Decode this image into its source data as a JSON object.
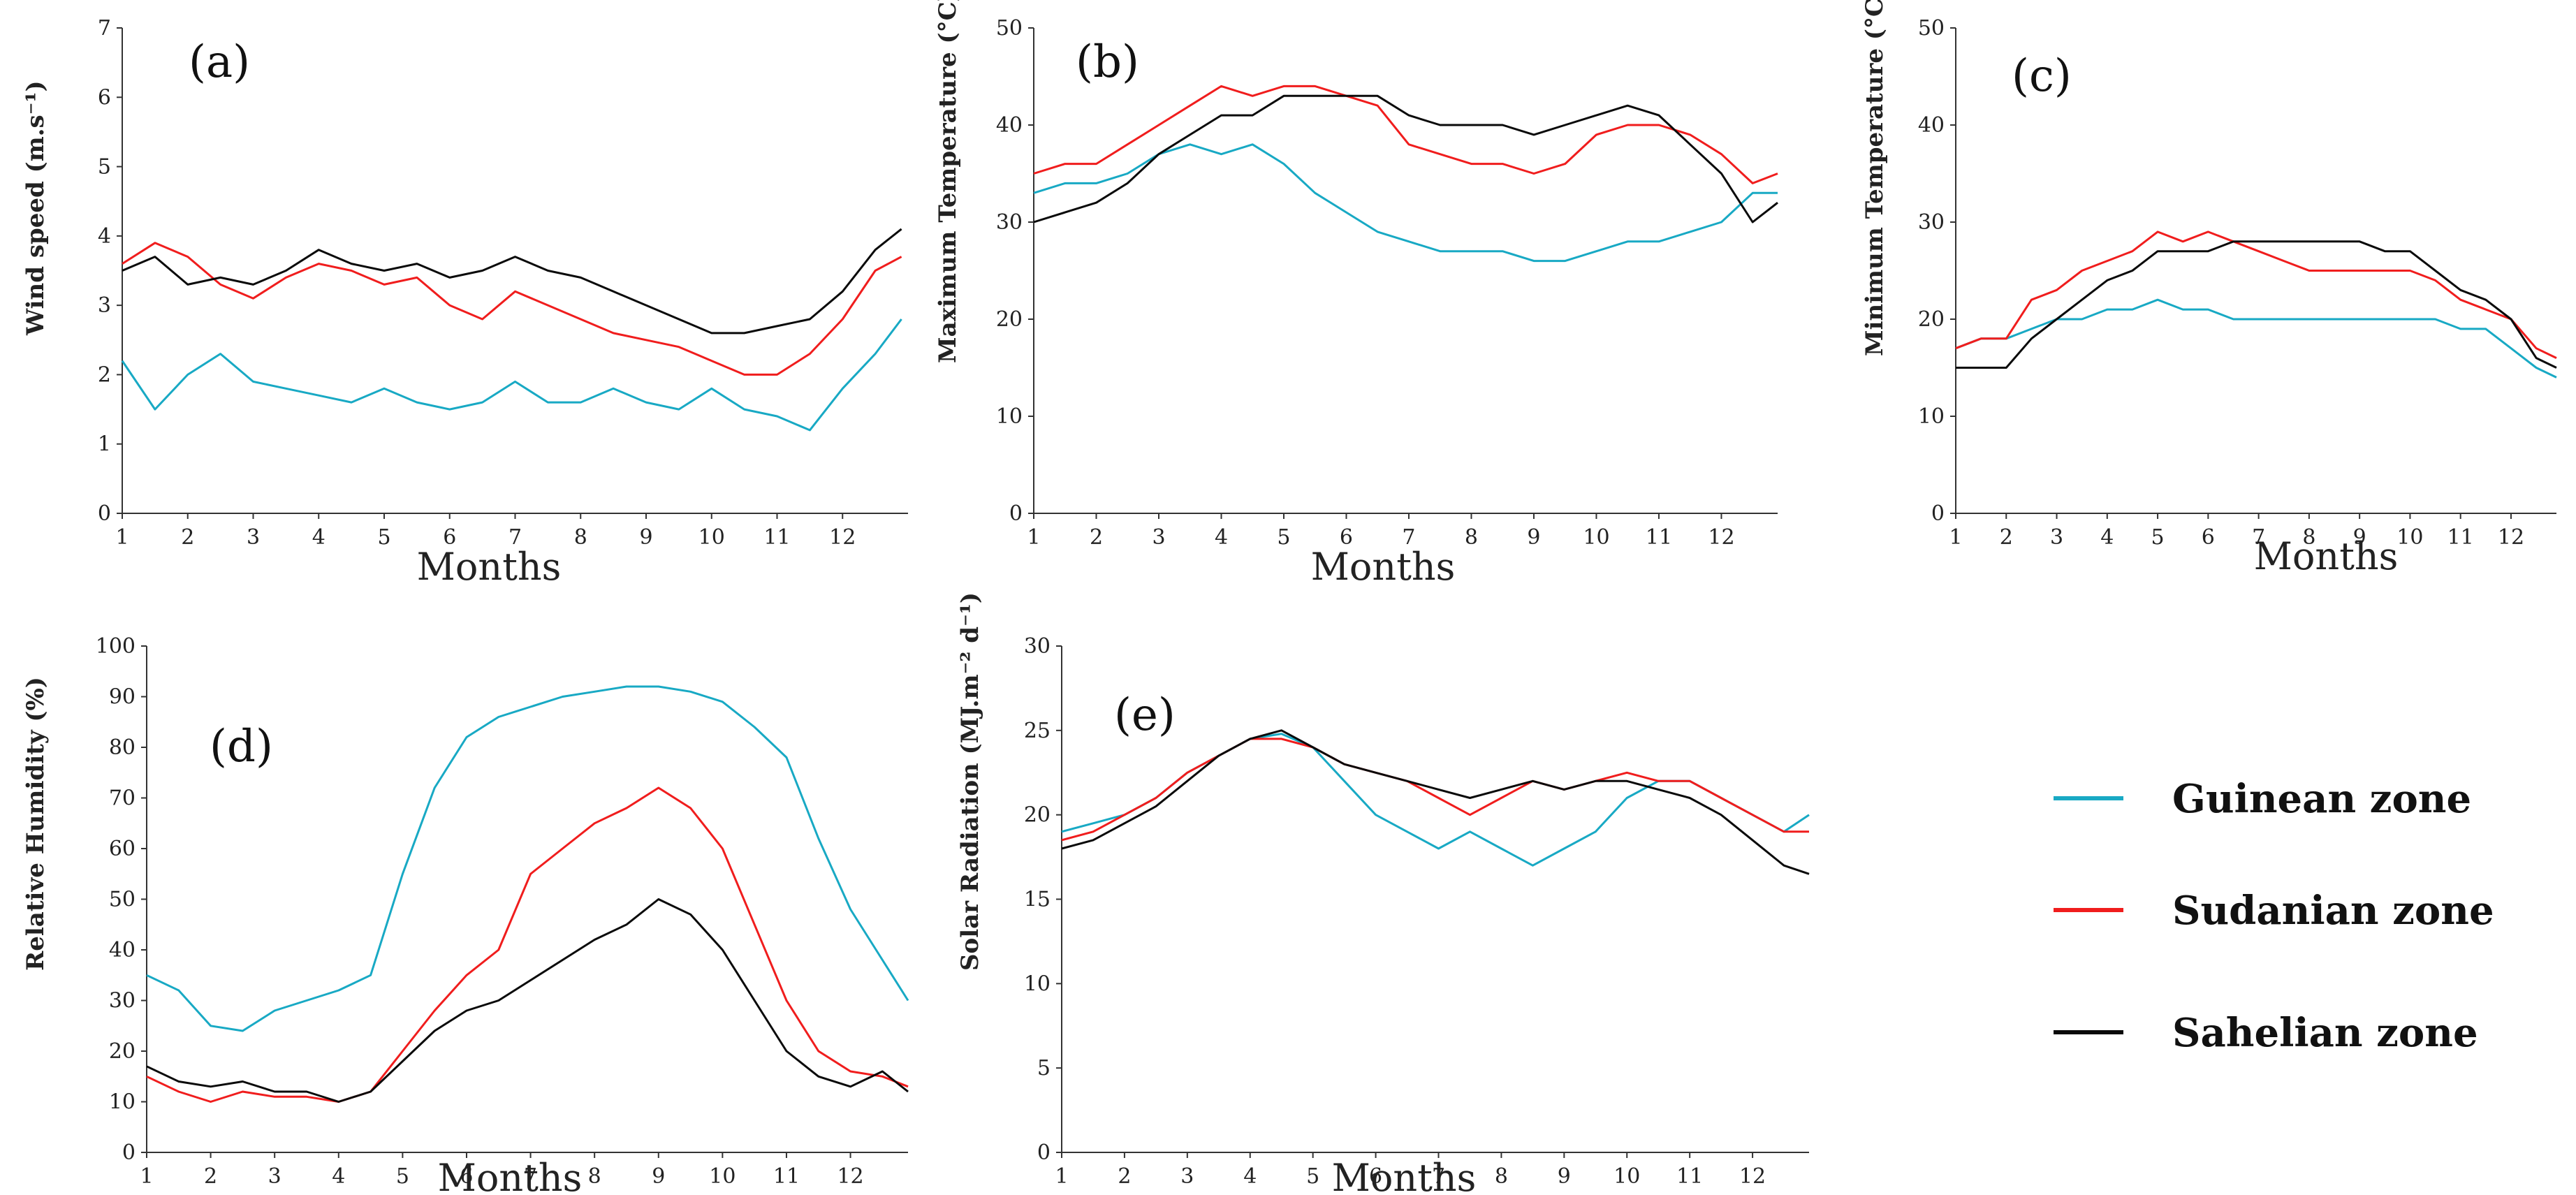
{
  "colors": {
    "guinean": "#18a9c4",
    "sudanian": "#f01d1d",
    "sahelian": "#0a0a0a"
  },
  "legend": [
    {
      "name": "Guinean zone",
      "color": "#18a9c4"
    },
    {
      "name": "Sudanian zone",
      "color": "#f01d1d"
    },
    {
      "name": "Sahelian zone",
      "color": "#0a0a0a"
    }
  ],
  "chart_data": [
    {
      "id": "a",
      "type": "line",
      "panel_label": "(a)",
      "xlabel": "Months",
      "ylabel": "Wind speed (m.s⁻¹)",
      "xlim": [
        1,
        13
      ],
      "ylim": [
        0,
        7
      ],
      "x_ticks": [
        1,
        2,
        3,
        4,
        5,
        6,
        7,
        8,
        9,
        10,
        11,
        12
      ],
      "y_ticks": [
        0,
        1,
        2,
        3,
        4,
        5,
        6,
        7
      ],
      "series": [
        {
          "name": "Guinean zone",
          "color": "#18a9c4",
          "x": [
            1,
            1.5,
            2,
            2.5,
            3,
            3.5,
            4,
            4.5,
            5,
            5.5,
            6,
            6.5,
            7,
            7.5,
            8,
            8.5,
            9,
            9.5,
            10,
            10.5,
            11,
            11.5,
            12,
            12.5,
            12.9
          ],
          "y": [
            2.2,
            1.5,
            2.0,
            2.3,
            1.9,
            1.8,
            1.7,
            1.6,
            1.8,
            1.6,
            1.5,
            1.6,
            1.9,
            1.6,
            1.6,
            1.8,
            1.6,
            1.5,
            1.8,
            1.5,
            1.4,
            1.2,
            1.8,
            2.3,
            2.8
          ]
        },
        {
          "name": "Sudanian zone",
          "color": "#f01d1d",
          "x": [
            1,
            1.5,
            2,
            2.5,
            3,
            3.5,
            4,
            4.5,
            5,
            5.5,
            6,
            6.5,
            7,
            7.5,
            8,
            8.5,
            9,
            9.5,
            10,
            10.5,
            11,
            11.5,
            12,
            12.5,
            12.9
          ],
          "y": [
            3.6,
            3.9,
            3.7,
            3.3,
            3.1,
            3.4,
            3.6,
            3.5,
            3.3,
            3.4,
            3.0,
            2.8,
            3.2,
            3.0,
            2.8,
            2.6,
            2.5,
            2.4,
            2.2,
            2.0,
            2.0,
            2.3,
            2.8,
            3.5,
            3.7
          ]
        },
        {
          "name": "Sahelian zone",
          "color": "#0a0a0a",
          "x": [
            1,
            1.5,
            2,
            2.5,
            3,
            3.5,
            4,
            4.5,
            5,
            5.5,
            6,
            6.5,
            7,
            7.5,
            8,
            8.5,
            9,
            9.5,
            10,
            10.5,
            11,
            11.5,
            12,
            12.5,
            12.9
          ],
          "y": [
            3.5,
            3.7,
            3.3,
            3.4,
            3.3,
            3.5,
            3.8,
            3.6,
            3.5,
            3.6,
            3.4,
            3.5,
            3.7,
            3.5,
            3.4,
            3.2,
            3.0,
            2.8,
            2.6,
            2.6,
            2.7,
            2.8,
            3.2,
            3.8,
            4.1
          ]
        }
      ]
    },
    {
      "id": "b",
      "type": "line",
      "panel_label": "(b)",
      "xlabel": "Months",
      "ylabel": "Maximum Temperature (°C)",
      "xlim": [
        1,
        12.9
      ],
      "ylim": [
        0,
        50
      ],
      "x_ticks": [
        1,
        2,
        3,
        4,
        5,
        6,
        7,
        8,
        9,
        10,
        11,
        12
      ],
      "y_ticks": [
        0,
        10,
        20,
        30,
        40,
        50
      ],
      "series": [
        {
          "name": "Guinean zone",
          "color": "#18a9c4",
          "x": [
            1,
            1.5,
            2,
            2.5,
            3,
            3.5,
            4,
            4.5,
            5,
            5.5,
            6,
            6.5,
            7,
            7.5,
            8,
            8.5,
            9,
            9.5,
            10,
            10.5,
            11,
            11.5,
            12,
            12.5,
            12.9
          ],
          "y": [
            33,
            34,
            34,
            35,
            37,
            38,
            37,
            38,
            36,
            33,
            31,
            29,
            28,
            27,
            27,
            27,
            26,
            26,
            27,
            28,
            28,
            29,
            30,
            33,
            33
          ]
        },
        {
          "name": "Sudanian zone",
          "color": "#f01d1d",
          "x": [
            1,
            1.5,
            2,
            2.5,
            3,
            3.5,
            4,
            4.5,
            5,
            5.5,
            6,
            6.5,
            7,
            7.5,
            8,
            8.5,
            9,
            9.5,
            10,
            10.5,
            11,
            11.5,
            12,
            12.5,
            12.9
          ],
          "y": [
            35,
            36,
            36,
            38,
            40,
            42,
            44,
            43,
            44,
            44,
            43,
            42,
            38,
            37,
            36,
            36,
            35,
            36,
            39,
            40,
            40,
            39,
            37,
            34,
            35
          ]
        },
        {
          "name": "Sahelian zone",
          "color": "#0a0a0a",
          "x": [
            1,
            1.5,
            2,
            2.5,
            3,
            3.5,
            4,
            4.5,
            5,
            5.5,
            6,
            6.5,
            7,
            7.5,
            8,
            8.5,
            9,
            9.5,
            10,
            10.5,
            11,
            11.5,
            12,
            12.5,
            12.9
          ],
          "y": [
            30,
            31,
            32,
            34,
            37,
            39,
            41,
            41,
            43,
            43,
            43,
            43,
            41,
            40,
            40,
            40,
            39,
            40,
            41,
            42,
            41,
            38,
            35,
            30,
            32
          ]
        }
      ]
    },
    {
      "id": "c",
      "type": "line",
      "panel_label": "(c)",
      "xlabel": "Months",
      "ylabel": "Minimum Temperature (°C)",
      "xlim": [
        1,
        12.9
      ],
      "ylim": [
        0,
        50
      ],
      "x_ticks": [
        1,
        2,
        3,
        4,
        5,
        6,
        7,
        8,
        9,
        10,
        11,
        12
      ],
      "y_ticks": [
        0,
        10,
        20,
        30,
        40,
        50
      ],
      "series": [
        {
          "name": "Guinean zone",
          "color": "#18a9c4",
          "x": [
            1,
            1.5,
            2,
            2.5,
            3,
            3.5,
            4,
            4.5,
            5,
            5.5,
            6,
            6.5,
            7,
            7.5,
            8,
            8.5,
            9,
            9.5,
            10,
            10.5,
            11,
            11.5,
            12,
            12.5,
            12.9
          ],
          "y": [
            17,
            18,
            18,
            19,
            20,
            20,
            21,
            21,
            22,
            21,
            21,
            20,
            20,
            20,
            20,
            20,
            20,
            20,
            20,
            20,
            19,
            19,
            17,
            15,
            14
          ]
        },
        {
          "name": "Sudanian zone",
          "color": "#f01d1d",
          "x": [
            1,
            1.5,
            2,
            2.5,
            3,
            3.5,
            4,
            4.5,
            5,
            5.5,
            6,
            6.5,
            7,
            7.5,
            8,
            8.5,
            9,
            9.5,
            10,
            10.5,
            11,
            11.5,
            12,
            12.5,
            12.9
          ],
          "y": [
            17,
            18,
            18,
            22,
            23,
            25,
            26,
            27,
            29,
            28,
            29,
            28,
            27,
            26,
            25,
            25,
            25,
            25,
            25,
            24,
            22,
            21,
            20,
            17,
            16
          ]
        },
        {
          "name": "Sahelian zone",
          "color": "#0a0a0a",
          "x": [
            1,
            1.5,
            2,
            2.5,
            3,
            3.5,
            4,
            4.5,
            5,
            5.5,
            6,
            6.5,
            7,
            7.5,
            8,
            8.5,
            9,
            9.5,
            10,
            10.5,
            11,
            11.5,
            12,
            12.5,
            12.9
          ],
          "y": [
            15,
            15,
            15,
            18,
            20,
            22,
            24,
            25,
            27,
            27,
            27,
            28,
            28,
            28,
            28,
            28,
            28,
            27,
            27,
            25,
            23,
            22,
            20,
            16,
            15
          ]
        }
      ]
    },
    {
      "id": "d",
      "type": "line",
      "panel_label": "(d)",
      "xlabel": "Months",
      "ylabel": "Relative Humidity (%)",
      "xlim": [
        1,
        12.9
      ],
      "ylim": [
        0,
        100
      ],
      "x_ticks": [
        1,
        2,
        3,
        4,
        5,
        6,
        7,
        8,
        9,
        10,
        11,
        12
      ],
      "y_ticks": [
        0,
        10,
        20,
        30,
        40,
        50,
        60,
        70,
        80,
        90,
        100
      ],
      "series": [
        {
          "name": "Guinean zone",
          "color": "#18a9c4",
          "x": [
            1,
            1.5,
            2,
            2.5,
            3,
            3.5,
            4,
            4.5,
            5,
            5.5,
            6,
            6.5,
            7,
            7.5,
            8,
            8.5,
            9,
            9.5,
            10,
            10.5,
            11,
            11.5,
            12,
            12.5,
            12.9
          ],
          "y": [
            35,
            32,
            25,
            24,
            28,
            30,
            32,
            35,
            55,
            72,
            82,
            86,
            88,
            90,
            91,
            92,
            92,
            91,
            89,
            84,
            78,
            62,
            48,
            38,
            30
          ]
        },
        {
          "name": "Sudanian zone",
          "color": "#f01d1d",
          "x": [
            1,
            1.5,
            2,
            2.5,
            3,
            3.5,
            4,
            4.5,
            5,
            5.5,
            6,
            6.5,
            7,
            7.5,
            8,
            8.5,
            9,
            9.5,
            10,
            10.5,
            11,
            11.5,
            12,
            12.5,
            12.9
          ],
          "y": [
            15,
            12,
            10,
            12,
            11,
            11,
            10,
            12,
            20,
            28,
            35,
            40,
            55,
            60,
            65,
            68,
            72,
            68,
            60,
            45,
            30,
            20,
            16,
            15,
            13
          ]
        },
        {
          "name": "Sahelian zone",
          "color": "#0a0a0a",
          "x": [
            1,
            1.5,
            2,
            2.5,
            3,
            3.5,
            4,
            4.5,
            5,
            5.5,
            6,
            6.5,
            7,
            7.5,
            8,
            8.5,
            9,
            9.5,
            10,
            10.5,
            11,
            11.5,
            12,
            12.5,
            12.9
          ],
          "y": [
            17,
            14,
            13,
            14,
            12,
            12,
            10,
            12,
            18,
            24,
            28,
            30,
            34,
            38,
            42,
            45,
            50,
            47,
            40,
            30,
            20,
            15,
            13,
            16,
            12
          ]
        }
      ]
    },
    {
      "id": "e",
      "type": "line",
      "panel_label": "(e)",
      "xlabel": "Months",
      "ylabel": "Solar Radiation (MJ.m⁻² d⁻¹)",
      "xlim": [
        1,
        12.9
      ],
      "ylim": [
        0,
        30
      ],
      "x_ticks": [
        1,
        2,
        3,
        4,
        5,
        6,
        7,
        8,
        9,
        10,
        11,
        12
      ],
      "y_ticks": [
        0,
        5,
        10,
        15,
        20,
        25,
        30
      ],
      "series": [
        {
          "name": "Guinean zone",
          "color": "#18a9c4",
          "x": [
            1,
            1.5,
            2,
            2.5,
            3,
            3.5,
            4,
            4.5,
            5,
            5.5,
            6,
            6.5,
            7,
            7.5,
            8,
            8.5,
            9,
            9.5,
            10,
            10.5,
            11,
            11.5,
            12,
            12.5,
            12.9
          ],
          "y": [
            19,
            19.5,
            20,
            21,
            22.5,
            23.5,
            24.5,
            24.8,
            24,
            22,
            20,
            19,
            18,
            19,
            18,
            17,
            18,
            19,
            21,
            22,
            22,
            21,
            20,
            19,
            20
          ]
        },
        {
          "name": "Sudanian zone",
          "color": "#f01d1d",
          "x": [
            1,
            1.5,
            2,
            2.5,
            3,
            3.5,
            4,
            4.5,
            5,
            5.5,
            6,
            6.5,
            7,
            7.5,
            8,
            8.5,
            9,
            9.5,
            10,
            10.5,
            11,
            11.5,
            12,
            12.5,
            12.9
          ],
          "y": [
            18.5,
            19,
            20,
            21,
            22.5,
            23.5,
            24.5,
            24.5,
            24,
            23,
            22.5,
            22,
            21,
            20,
            21,
            22,
            21.5,
            22,
            22.5,
            22,
            22,
            21,
            20,
            19,
            19
          ]
        },
        {
          "name": "Sahelian zone",
          "color": "#0a0a0a",
          "x": [
            1,
            1.5,
            2,
            2.5,
            3,
            3.5,
            4,
            4.5,
            5,
            5.5,
            6,
            6.5,
            7,
            7.5,
            8,
            8.5,
            9,
            9.5,
            10,
            10.5,
            11,
            11.5,
            12,
            12.5,
            12.9
          ],
          "y": [
            18,
            18.5,
            19.5,
            20.5,
            22,
            23.5,
            24.5,
            25,
            24,
            23,
            22.5,
            22,
            21.5,
            21,
            21.5,
            22,
            21.5,
            22,
            22,
            21.5,
            21,
            20,
            18.5,
            17,
            16.5
          ]
        }
      ]
    }
  ]
}
